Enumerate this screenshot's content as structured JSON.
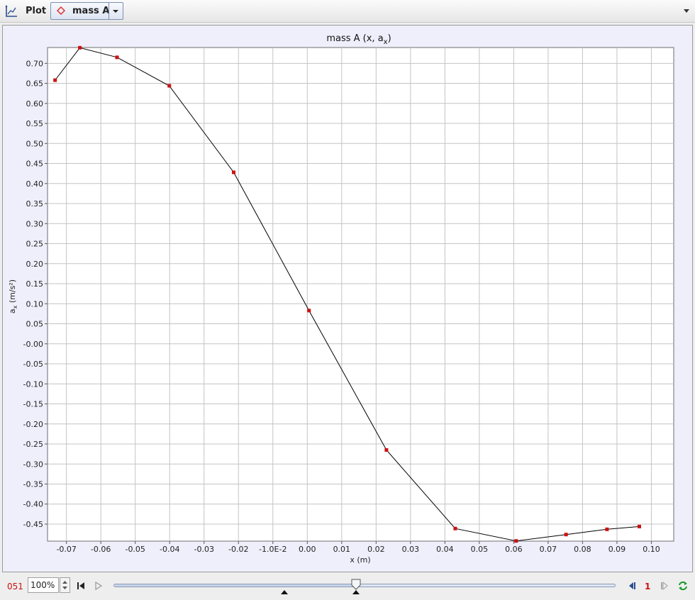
{
  "toolbar": {
    "plot_icon": "plot-axes-icon",
    "title": "Plot",
    "selected_track": "mass A",
    "track_icon": "red-diamond-icon",
    "track_color": "#e03030",
    "menu_icon": "dropdown-arrow-icon"
  },
  "chart_data": {
    "type": "line",
    "title": "mass A (x, a",
    "title_sub": "x",
    "title_close": ")",
    "xlabel": "x (m)",
    "ylabel_main": "a",
    "ylabel_sub": "x",
    "ylabel_rest": " (m/s²)",
    "xlim": [
      -0.0755,
      0.1065
    ],
    "ylim": [
      -0.4925,
      0.7395
    ],
    "x_ticks": [
      -0.07,
      -0.06,
      -0.05,
      -0.04,
      -0.03,
      -0.02,
      -0.01,
      0.0,
      0.01,
      0.02,
      0.03,
      0.04,
      0.05,
      0.06,
      0.07,
      0.08,
      0.09,
      0.1
    ],
    "x_tick_labels": [
      "-0.07",
      "-0.06",
      "-0.05",
      "-0.04",
      "-0.03",
      "-0.02",
      "-1.0E-2",
      "0.00",
      "0.01",
      "0.02",
      "0.03",
      "0.04",
      "0.05",
      "0.06",
      "0.07",
      "0.08",
      "0.09",
      "0.10"
    ],
    "y_ticks": [
      0.7,
      0.65,
      0.6,
      0.55,
      0.5,
      0.45,
      0.4,
      0.35,
      0.3,
      0.25,
      0.2,
      0.15,
      0.1,
      0.05,
      0.0,
      -0.05,
      -0.1,
      -0.15,
      -0.2,
      -0.25,
      -0.3,
      -0.35,
      -0.4,
      -0.45
    ],
    "y_tick_labels": [
      "0.70",
      "0.65",
      "0.60",
      "0.55",
      "0.50",
      "0.45",
      "0.40",
      "0.35",
      "0.30",
      "0.25",
      "0.20",
      "0.15",
      "0.10",
      "0.05",
      "-0.00",
      "-0.05",
      "-0.10",
      "-0.15",
      "-0.20",
      "-0.25",
      "-0.30",
      "-0.35",
      "-0.40",
      "-0.45"
    ],
    "grid": true,
    "line_color": "#000000",
    "marker_color": "#cc1111",
    "series": [
      {
        "x": [
          -0.0733,
          -0.0661,
          -0.0553,
          -0.0401,
          -0.0214,
          0.0005,
          0.023,
          0.043,
          0.0607,
          0.0752,
          0.0871,
          0.0965
        ],
        "y": [
          0.658,
          0.739,
          0.715,
          0.644,
          0.428,
          0.083,
          -0.265,
          -0.461,
          -0.492,
          -0.476,
          -0.463,
          -0.456
        ]
      }
    ]
  },
  "player": {
    "frame": "051",
    "zoom": "100%",
    "step_size": "1",
    "slider_position": 0.48
  }
}
